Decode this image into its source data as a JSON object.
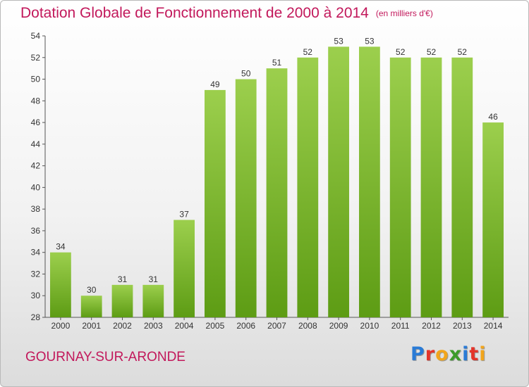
{
  "header": {
    "title": "Dotation Globale de Fonctionnement de 2000 à 2014",
    "subtitle": "(en milliers d'€)"
  },
  "footer": {
    "city": "GOURNAY-SUR-ARONDE",
    "logo_letters": [
      "P",
      "r",
      "o",
      "x",
      "i",
      "t",
      "i"
    ],
    "logo_colors": [
      "#2a7bd6",
      "#e4342a",
      "#f2a51c",
      "#3c9b2a",
      "#2a7bd6",
      "#e4342a",
      "#f2a51c"
    ]
  },
  "colors": {
    "bar_top": "#9ccf4d",
    "bar_bottom": "#5d9c14",
    "accent": "#c2185b"
  },
  "chart_data": {
    "type": "bar",
    "categories": [
      "2000",
      "2001",
      "2002",
      "2003",
      "2004",
      "2005",
      "2006",
      "2007",
      "2008",
      "2009",
      "2010",
      "2011",
      "2012",
      "2013",
      "2014"
    ],
    "values": [
      34,
      30,
      31,
      31,
      37,
      49,
      50,
      51,
      52,
      53,
      53,
      52,
      52,
      52,
      46
    ],
    "title": "Dotation Globale de Fonctionnement de 2000 à 2014",
    "subtitle": "(en milliers d'€)",
    "xlabel": "",
    "ylabel": "",
    "ylim": [
      28,
      54
    ],
    "yticks": [
      28,
      30,
      32,
      34,
      36,
      38,
      40,
      42,
      44,
      46,
      48,
      50,
      52,
      54
    ],
    "grid": false,
    "legend": "none"
  }
}
